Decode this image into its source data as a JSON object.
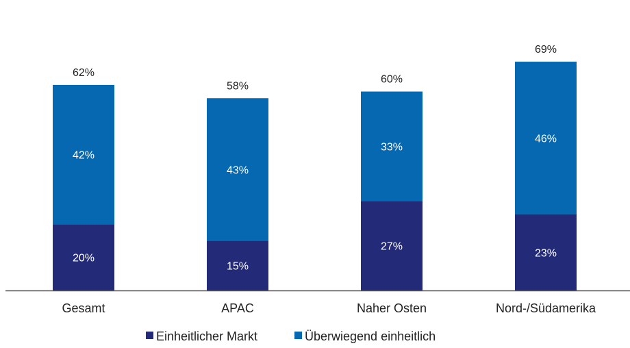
{
  "chart_data": {
    "type": "bar",
    "stacked": true,
    "categories": [
      "Gesamt",
      "APAC",
      "Naher Osten",
      "Nord-/Südamerika"
    ],
    "series": [
      {
        "name": "Einheitlicher Markt",
        "values": [
          20,
          15,
          27,
          23
        ],
        "labels": [
          "20%",
          "15%",
          "27%",
          "23%"
        ],
        "color": "#232a78"
      },
      {
        "name": "Überwiegend einheitlich",
        "values": [
          42,
          43,
          33,
          46
        ],
        "labels": [
          "42%",
          "43%",
          "33%",
          "46%"
        ],
        "color": "#0568b1"
      }
    ],
    "totals": [
      62,
      58,
      60,
      69
    ],
    "total_labels": [
      "62%",
      "58%",
      "60%",
      "69%"
    ],
    "ylim": [
      0,
      80
    ],
    "grid": false,
    "legend_position": "bottom",
    "axis_color": "#555555"
  }
}
